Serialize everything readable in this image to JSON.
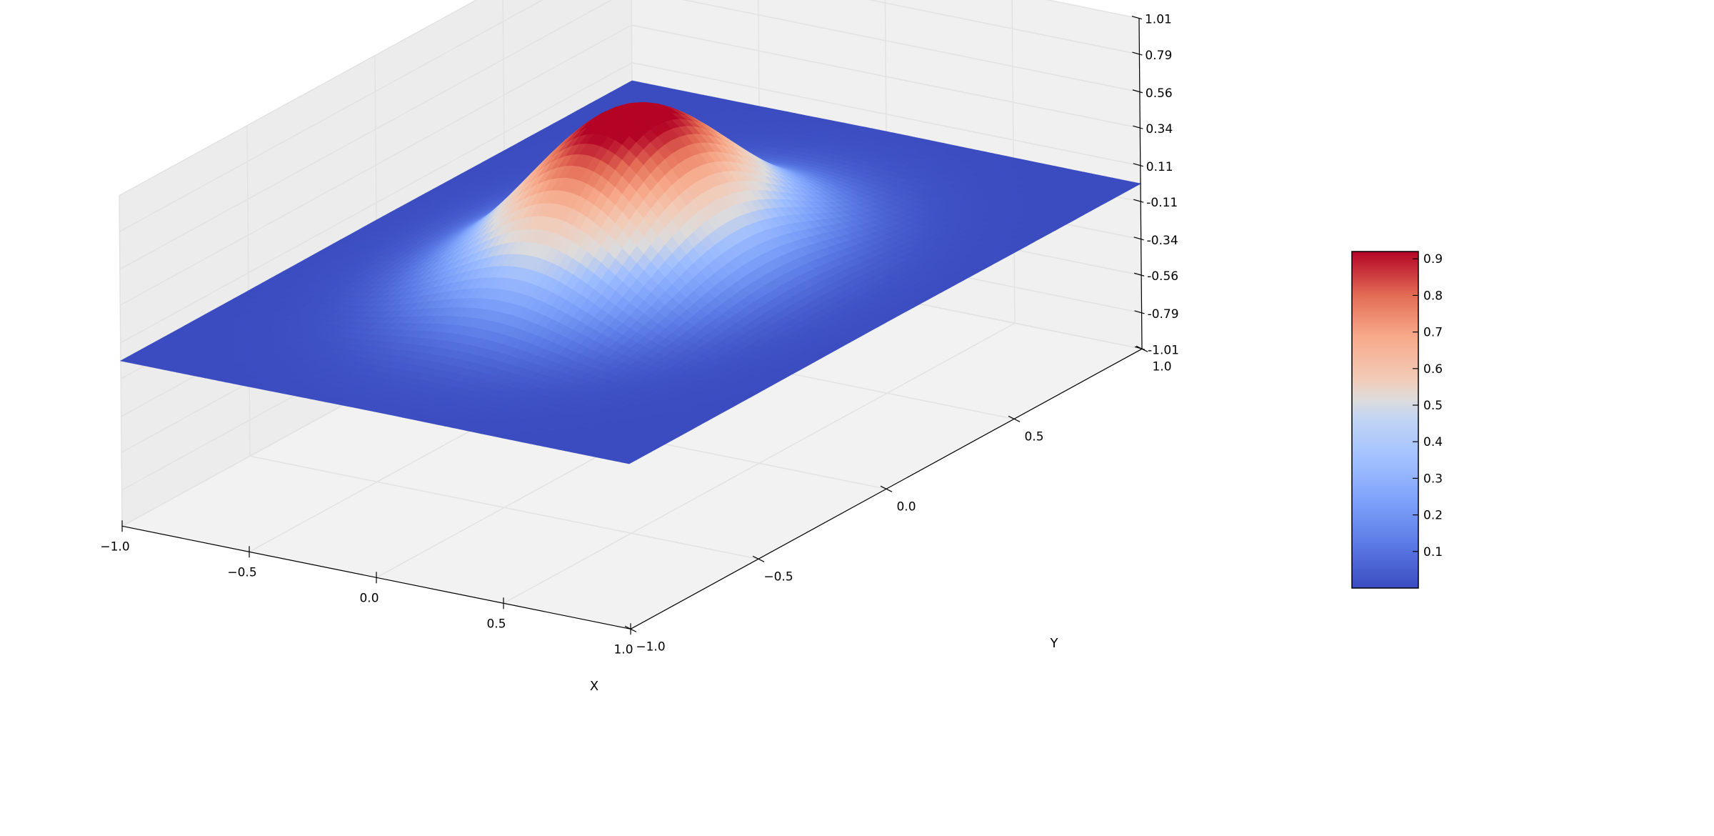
{
  "chart_data": {
    "type": "surface3d",
    "title": "",
    "xlabel": "X",
    "ylabel": "Y",
    "zlabel": "",
    "xlim": [
      -1.0,
      1.0
    ],
    "ylim": [
      -1.0,
      1.0
    ],
    "zlim": [
      -1.01,
      1.01
    ],
    "x_ticks": [
      "−1.0",
      "−0.5",
      "0.0",
      "0.5",
      "1.0"
    ],
    "y_ticks": [
      "−1.0",
      "−0.5",
      "0.0",
      "0.5",
      "1.0"
    ],
    "z_ticks": [
      "-1.01",
      "-0.79",
      "-0.56",
      "-0.34",
      "-0.11",
      "0.11",
      "0.34",
      "0.56",
      "0.79",
      "1.01"
    ],
    "surface": {
      "function": "z = exp(-(x^2 + y^2) / (2 * 0.3^2))",
      "peak": 1.0,
      "x_range": [
        -1.0,
        1.0
      ],
      "y_range": [
        -1.0,
        1.0
      ]
    },
    "colormap": "coolwarm",
    "colorbar": {
      "ticks": [
        "0.9",
        "0.8",
        "0.7",
        "0.6",
        "0.5",
        "0.4",
        "0.3",
        "0.2",
        "0.1"
      ],
      "range": [
        0.0,
        0.92
      ]
    },
    "grid": true,
    "colors": {
      "low": "#3b4cc0",
      "mid": "#dddddd",
      "high": "#b40426",
      "pane": "#f2f2f2",
      "grid": "#e6e6e6"
    }
  }
}
